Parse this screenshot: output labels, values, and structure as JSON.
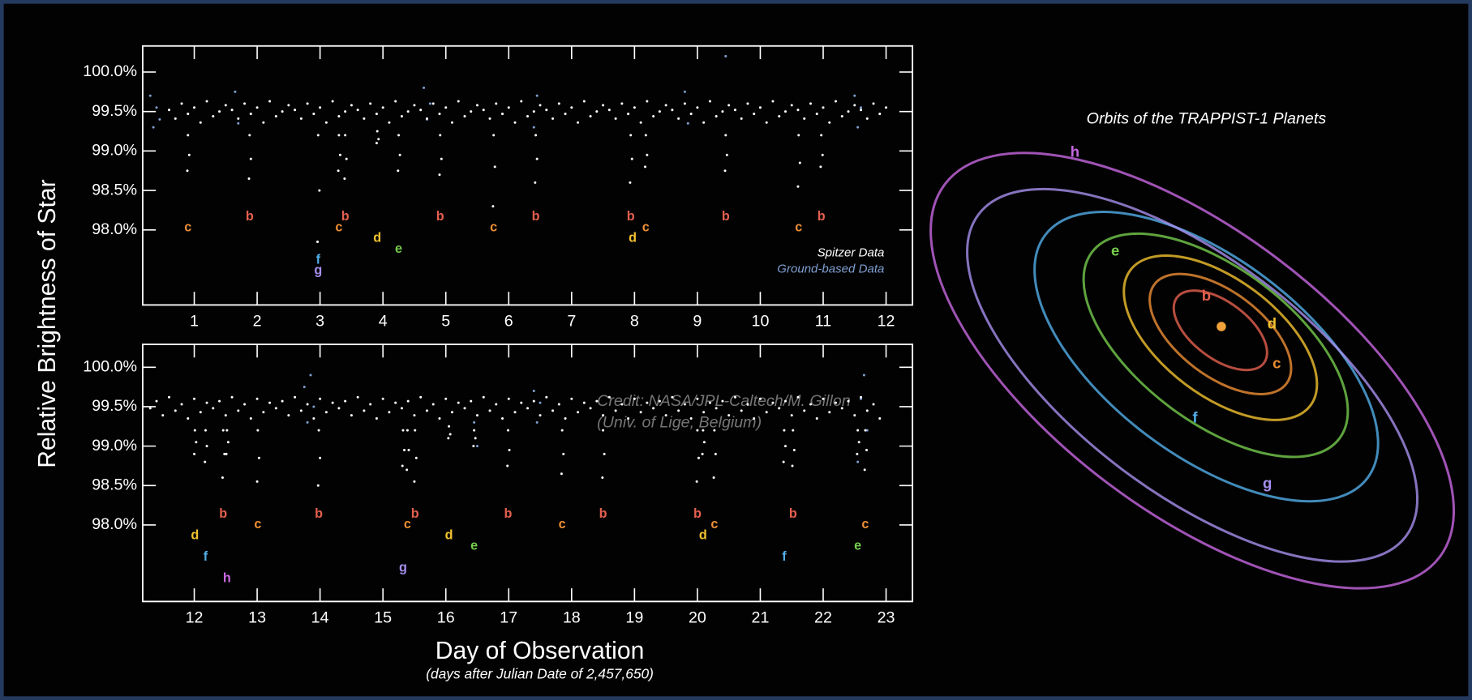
{
  "chart_data": [
    {
      "type": "scatter",
      "ylabel": "Relative Brightness of Star",
      "xlim": [
        0.18,
        12.42
      ],
      "ylim": [
        97.05,
        100.33
      ],
      "xticks": [
        1,
        2,
        3,
        4,
        5,
        6,
        7,
        8,
        9,
        10,
        11,
        12
      ],
      "yticks": [
        {
          "value": 100,
          "label": "100.0%"
        },
        {
          "value": 99.5,
          "label": "99.5%"
        },
        {
          "value": 99,
          "label": "99.0%"
        },
        {
          "value": 98.5,
          "label": "98.5%"
        },
        {
          "value": 98,
          "label": "98.0%"
        }
      ],
      "legend": "lower right",
      "series": [
        {
          "name": "Spitzer Data",
          "color": "#ffffff",
          "x": [
            0.6,
            0.7,
            0.8,
            0.9,
            1.0,
            1.1,
            1.2,
            1.3,
            1.4,
            1.5,
            1.6,
            1.7,
            1.8,
            1.9,
            2.0,
            2.1,
            2.2,
            2.3,
            2.4,
            2.5,
            2.6,
            2.7,
            2.8,
            2.9,
            3.0,
            3.1,
            3.2,
            3.3,
            3.4,
            3.5,
            3.6,
            3.7,
            3.8,
            3.9,
            4.0,
            4.1,
            4.2,
            4.3,
            4.4,
            4.5,
            4.6,
            4.7,
            4.8,
            4.9,
            5.0,
            5.1,
            5.2,
            5.3,
            5.4,
            5.5,
            5.6,
            5.7,
            5.8,
            5.9,
            6.0,
            6.1,
            6.2,
            6.3,
            6.4,
            6.5,
            6.6,
            6.7,
            6.8,
            6.9,
            7.0,
            7.1,
            7.2,
            7.3,
            7.4,
            7.5,
            7.6,
            7.7,
            7.8,
            7.9,
            8.0,
            8.1,
            8.2,
            8.3,
            8.4,
            8.5,
            8.6,
            8.7,
            8.8,
            8.9,
            9.0,
            9.1,
            9.2,
            9.3,
            9.4,
            9.5,
            9.6,
            9.7,
            9.8,
            9.9,
            10.0,
            10.1,
            10.2,
            10.3,
            10.4,
            10.5,
            10.6,
            10.7,
            10.8,
            10.9,
            11.0,
            11.1,
            11.2,
            11.3,
            11.4,
            11.5,
            11.6,
            11.7,
            11.8,
            11.9,
            12.0,
            0.9,
            0.92,
            0.89,
            1.88,
            1.9,
            1.87,
            2.97,
            2.99,
            2.96,
            3.3,
            3.32,
            3.29,
            3.4,
            3.42,
            3.39,
            3.91,
            3.93,
            3.9,
            4.25,
            4.27,
            4.24,
            4.91,
            4.93,
            4.9,
            5.76,
            5.78,
            5.75,
            6.43,
            6.45,
            6.42,
            7.94,
            7.96,
            7.93,
            8.18,
            8.2,
            8.17,
            9.45,
            9.47,
            9.44,
            10.61,
            10.63,
            10.6,
            10.97,
            10.99,
            10.96
          ],
          "values": [
            99.52,
            99.41,
            99.6,
            99.47,
            99.55,
            99.36,
            99.63,
            99.44,
            99.5,
            99.58,
            99.52,
            99.41,
            99.6,
            99.47,
            99.55,
            99.36,
            99.63,
            99.44,
            99.5,
            99.58,
            99.52,
            99.41,
            99.6,
            99.47,
            99.55,
            99.36,
            99.63,
            99.44,
            99.5,
            99.58,
            99.52,
            99.41,
            99.6,
            99.47,
            99.55,
            99.36,
            99.63,
            99.44,
            99.5,
            99.58,
            99.52,
            99.41,
            99.6,
            99.47,
            99.55,
            99.36,
            99.63,
            99.44,
            99.5,
            99.58,
            99.52,
            99.41,
            99.6,
            99.47,
            99.55,
            99.36,
            99.63,
            99.44,
            99.5,
            99.58,
            99.52,
            99.41,
            99.6,
            99.47,
            99.55,
            99.36,
            99.63,
            99.44,
            99.5,
            99.58,
            99.52,
            99.41,
            99.6,
            99.47,
            99.55,
            99.36,
            99.63,
            99.44,
            99.5,
            99.58,
            99.52,
            99.41,
            99.6,
            99.47,
            99.55,
            99.36,
            99.63,
            99.44,
            99.5,
            99.58,
            99.52,
            99.41,
            99.6,
            99.47,
            99.55,
            99.36,
            99.63,
            99.44,
            99.5,
            99.58,
            99.52,
            99.41,
            99.6,
            99.47,
            99.55,
            99.36,
            99.63,
            99.44,
            99.5,
            99.58,
            99.52,
            99.41,
            99.6,
            99.47,
            99.55,
            99.2,
            98.95,
            98.75,
            99.2,
            98.9,
            98.65,
            99.2,
            98.5,
            97.85,
            99.2,
            98.95,
            98.75,
            99.2,
            98.9,
            98.65,
            99.25,
            99.15,
            99.1,
            99.2,
            98.95,
            98.75,
            99.2,
            98.9,
            98.7,
            99.2,
            98.8,
            98.3,
            99.2,
            98.9,
            98.6,
            99.2,
            98.9,
            98.6,
            99.2,
            98.95,
            98.8,
            99.2,
            98.95,
            98.75,
            99.2,
            98.85,
            98.55,
            99.2,
            98.95,
            98.8
          ]
        },
        {
          "name": "Ground-based Data",
          "color": "#7f9fd0",
          "x": [
            0.3,
            0.35,
            0.4,
            0.45,
            1.65,
            1.7,
            4.65,
            4.7,
            4.75,
            6.4,
            6.45,
            8.8,
            8.85,
            9.45,
            11.5,
            11.55,
            11.6
          ],
          "values": [
            99.7,
            99.3,
            99.55,
            99.4,
            99.75,
            99.35,
            99.8,
            99.4,
            99.6,
            99.3,
            99.7,
            99.75,
            99.35,
            100.2,
            99.7,
            99.3,
            99.55
          ]
        }
      ],
      "transits": [
        {
          "planet": "c",
          "x": 0.9
        },
        {
          "planet": "b",
          "x": 1.88
        },
        {
          "planet": "f",
          "x": 2.97
        },
        {
          "planet": "g",
          "x": 2.97
        },
        {
          "planet": "c",
          "x": 3.3
        },
        {
          "planet": "b",
          "x": 3.4
        },
        {
          "planet": "d",
          "x": 3.91
        },
        {
          "planet": "e",
          "x": 4.25
        },
        {
          "planet": "b",
          "x": 4.91
        },
        {
          "planet": "c",
          "x": 5.76
        },
        {
          "planet": "b",
          "x": 6.43
        },
        {
          "planet": "b",
          "x": 7.94
        },
        {
          "planet": "d",
          "x": 7.97
        },
        {
          "planet": "c",
          "x": 8.18
        },
        {
          "planet": "b",
          "x": 9.45
        },
        {
          "planet": "c",
          "x": 10.61
        },
        {
          "planet": "b",
          "x": 10.97
        }
      ]
    },
    {
      "type": "scatter",
      "xlabel": "Day of Observation",
      "xlabel_note": "(days after Julian Date of 2,457,650)",
      "annotations": [
        "Credit: NASA/JPL-Caltech/M. Gillon",
        "(Univ. of Lige, Belgium)"
      ],
      "xlim": [
        11.18,
        23.42
      ],
      "ylim": [
        97.03,
        100.29
      ],
      "xticks": [
        12,
        13,
        14,
        15,
        16,
        17,
        18,
        19,
        20,
        21,
        22,
        23
      ],
      "yticks": [
        {
          "value": 100,
          "label": "100.0%"
        },
        {
          "value": 99.5,
          "label": "99.5%"
        },
        {
          "value": 99,
          "label": "99.0%"
        },
        {
          "value": 98.5,
          "label": "98.5%"
        },
        {
          "value": 98,
          "label": "98.0%"
        }
      ],
      "series": [
        {
          "name": "Spitzer Data",
          "color": "#ffffff",
          "x": [
            11.3,
            11.4,
            11.5,
            11.6,
            11.7,
            11.8,
            11.9,
            12.0,
            12.1,
            12.2,
            12.3,
            12.4,
            12.5,
            12.6,
            12.7,
            12.8,
            12.9,
            13.0,
            13.1,
            13.2,
            13.3,
            13.4,
            13.5,
            13.6,
            13.7,
            13.8,
            13.9,
            14.0,
            14.1,
            14.2,
            14.3,
            14.4,
            14.5,
            14.6,
            14.7,
            14.8,
            14.9,
            15.0,
            15.1,
            15.2,
            15.3,
            15.4,
            15.5,
            15.6,
            15.7,
            15.8,
            15.9,
            16.0,
            16.1,
            16.2,
            16.3,
            16.4,
            16.5,
            16.6,
            16.7,
            16.8,
            16.9,
            17.0,
            17.1,
            17.2,
            17.3,
            17.4,
            17.5,
            17.6,
            17.7,
            17.8,
            17.9,
            18.0,
            18.1,
            18.2,
            18.3,
            18.4,
            18.5,
            18.6,
            18.7,
            18.8,
            18.9,
            19.0,
            19.1,
            19.2,
            19.3,
            19.4,
            19.5,
            19.6,
            19.7,
            19.8,
            19.9,
            20.0,
            20.1,
            20.2,
            20.3,
            20.4,
            20.5,
            20.6,
            20.7,
            20.8,
            20.9,
            21.0,
            21.1,
            21.2,
            21.3,
            21.4,
            21.5,
            21.6,
            21.7,
            21.8,
            21.9,
            22.0,
            22.1,
            22.2,
            22.3,
            22.4,
            22.5,
            22.6,
            22.7,
            22.8,
            22.9,
            12.01,
            12.03,
            12.0,
            12.18,
            12.2,
            12.17,
            12.46,
            12.48,
            12.45,
            12.52,
            12.54,
            12.51,
            13.01,
            13.03,
            13.0,
            13.98,
            14.0,
            13.97,
            15.32,
            15.34,
            15.31,
            15.39,
            15.41,
            15.38,
            15.51,
            15.53,
            15.5,
            16.05,
            16.07,
            16.04,
            16.45,
            16.47,
            16.44,
            16.99,
            17.01,
            16.98,
            17.85,
            17.87,
            17.84,
            18.5,
            18.52,
            18.49,
            20.0,
            20.02,
            19.99,
            20.09,
            20.11,
            20.08,
            20.27,
            20.29,
            20.26,
            21.38,
            21.4,
            21.37,
            21.52,
            21.54,
            21.51,
            22.55,
            22.57,
            22.54,
            22.67,
            22.69,
            22.66
          ],
          "values": [
            99.48,
            99.57,
            99.39,
            99.62,
            99.45,
            99.53,
            99.35,
            99.6,
            99.43,
            99.55,
            99.48,
            99.57,
            99.39,
            99.62,
            99.45,
            99.53,
            99.35,
            99.6,
            99.43,
            99.55,
            99.48,
            99.57,
            99.39,
            99.62,
            99.45,
            99.53,
            99.35,
            99.6,
            99.43,
            99.55,
            99.48,
            99.57,
            99.39,
            99.62,
            99.45,
            99.53,
            99.35,
            99.6,
            99.43,
            99.55,
            99.48,
            99.57,
            99.39,
            99.62,
            99.45,
            99.53,
            99.35,
            99.6,
            99.43,
            99.55,
            99.48,
            99.57,
            99.39,
            99.62,
            99.45,
            99.53,
            99.35,
            99.6,
            99.43,
            99.55,
            99.48,
            99.57,
            99.39,
            99.62,
            99.45,
            99.53,
            99.35,
            99.6,
            99.43,
            99.55,
            99.48,
            99.57,
            99.39,
            99.62,
            99.45,
            99.53,
            99.35,
            99.6,
            99.43,
            99.55,
            99.48,
            99.57,
            99.39,
            99.62,
            99.45,
            99.53,
            99.35,
            99.6,
            99.43,
            99.55,
            99.48,
            99.57,
            99.39,
            99.62,
            99.45,
            99.53,
            99.35,
            99.6,
            99.43,
            99.55,
            99.48,
            99.57,
            99.39,
            99.62,
            99.45,
            99.53,
            99.35,
            99.6,
            99.43,
            99.55,
            99.48,
            99.57,
            99.39,
            99.62,
            99.45,
            99.53,
            99.35,
            99.2,
            99.05,
            98.9,
            99.2,
            99.0,
            98.8,
            99.2,
            98.9,
            98.6,
            99.2,
            99.05,
            98.9,
            99.2,
            98.85,
            98.55,
            99.2,
            98.85,
            98.5,
            99.2,
            98.95,
            98.75,
            99.2,
            98.95,
            98.7,
            99.2,
            98.85,
            98.55,
            99.25,
            99.15,
            99.1,
            99.2,
            99.1,
            99.0,
            99.2,
            98.95,
            98.75,
            99.2,
            98.9,
            98.65,
            99.2,
            98.9,
            98.6,
            99.2,
            98.85,
            98.55,
            99.2,
            99.05,
            98.9,
            99.2,
            98.9,
            98.6,
            99.2,
            99.0,
            98.8,
            99.2,
            98.95,
            98.75,
            99.2,
            99.05,
            98.9,
            99.2,
            98.95,
            98.7
          ]
        },
        {
          "name": "Ground-based Data",
          "color": "#7f9fd0",
          "x": [
            13.75,
            13.8,
            13.85,
            13.9,
            16.45,
            16.5,
            17.4,
            17.45,
            17.5,
            22.55,
            22.6,
            22.65,
            22.7
          ],
          "values": [
            99.75,
            99.3,
            99.9,
            99.5,
            99.3,
            99.0,
            99.7,
            99.3,
            99.55,
            98.8,
            99.6,
            99.9,
            99.2
          ]
        }
      ],
      "transits": [
        {
          "planet": "d",
          "x": 12.01
        },
        {
          "planet": "f",
          "x": 12.18
        },
        {
          "planet": "b",
          "x": 12.46
        },
        {
          "planet": "h",
          "x": 12.52
        },
        {
          "planet": "c",
          "x": 13.01
        },
        {
          "planet": "b",
          "x": 13.98
        },
        {
          "planet": "g",
          "x": 15.32
        },
        {
          "planet": "c",
          "x": 15.39
        },
        {
          "planet": "b",
          "x": 15.51
        },
        {
          "planet": "d",
          "x": 16.05
        },
        {
          "planet": "e",
          "x": 16.45
        },
        {
          "planet": "b",
          "x": 16.99
        },
        {
          "planet": "c",
          "x": 17.85
        },
        {
          "planet": "b",
          "x": 18.5
        },
        {
          "planet": "b",
          "x": 20.0
        },
        {
          "planet": "d",
          "x": 20.09
        },
        {
          "planet": "c",
          "x": 20.27
        },
        {
          "planet": "f",
          "x": 21.38
        },
        {
          "planet": "b",
          "x": 21.52
        },
        {
          "planet": "e",
          "x": 22.55
        },
        {
          "planet": "c",
          "x": 22.67
        }
      ]
    },
    {
      "type": "orbit",
      "title": "Orbits of the TRAPPIST-1 Planets",
      "star_color": "#f2a23a",
      "planets": [
        {
          "label": "b",
          "color": "#e4604f"
        },
        {
          "label": "c",
          "color": "#ee8e34"
        },
        {
          "label": "d",
          "color": "#f2c230"
        },
        {
          "label": "e",
          "color": "#76cc4e"
        },
        {
          "label": "f",
          "color": "#52aee8"
        },
        {
          "label": "g",
          "color": "#a890ee"
        },
        {
          "label": "h",
          "color": "#c868e2"
        }
      ]
    }
  ]
}
